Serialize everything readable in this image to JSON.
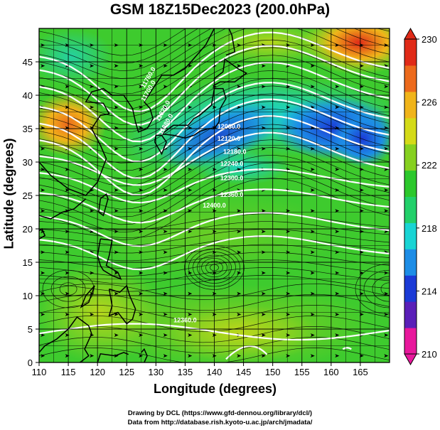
{
  "title": "GSM 18Z15Dec2023 (200.0hPa)",
  "xlabel": "Longitude (degrees)",
  "ylabel": "Latitude (degrees)",
  "credits": [
    "Drawing by DCL (https://www.gfd-dennou.org/library/dcl/)",
    "Data from http://database.rish.kyoto-u.ac.jp/arch/jmadata/"
  ],
  "x_ticks": [
    "110",
    "115",
    "120",
    "125",
    "130",
    "135",
    "140",
    "145",
    "150",
    "155",
    "160",
    "165"
  ],
  "y_ticks": [
    "0",
    "5",
    "10",
    "15",
    "20",
    "25",
    "30",
    "35",
    "40",
    "45"
  ],
  "colorbar": {
    "ticks": [
      "230",
      "226",
      "222",
      "218",
      "214",
      "210"
    ],
    "colors": [
      "#e8189c",
      "#5a1fb8",
      "#1b3ad6",
      "#1d8de6",
      "#19d4d4",
      "#22d06a",
      "#2cc82c",
      "#86d020",
      "#d4da18",
      "#f0b41a",
      "#ec6a1c",
      "#e02a18"
    ]
  },
  "contour_labels": [
    "12060.0",
    "12120.0",
    "12180.0",
    "12240.0",
    "12300.0",
    "12360.0",
    "12400.0",
    "11700.0",
    "11760.0",
    "11820.0",
    "11880.0",
    "12360.0"
  ]
}
